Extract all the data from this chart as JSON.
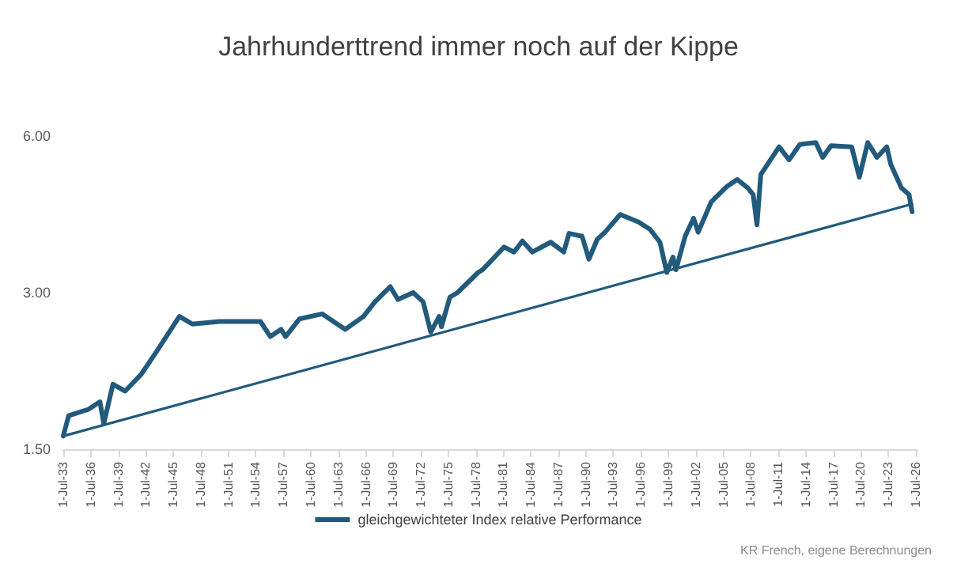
{
  "chart_data": {
    "type": "line",
    "title": "Jahrhunderttrend immer noch auf der Kippe",
    "annotations": [
      "KR French, eigene Berechnungen"
    ],
    "log": "y",
    "grid": false,
    "legend": "bottom",
    "marker": "none",
    "line_style": "solid",
    "ylim": [
      1.5,
      6
    ],
    "yticks": [
      {
        "value": 1.5,
        "label": "1.50"
      },
      {
        "value": 3,
        "label": "3.00"
      },
      {
        "value": 6,
        "label": "6.00"
      }
    ],
    "xlim": [
      "1933-07-01",
      "2026-07-01"
    ],
    "xticks": [
      {
        "value": "1933-07-01",
        "label": "1-Jul-33"
      },
      {
        "value": "1936-07-01",
        "label": "1-Jul-36"
      },
      {
        "value": "1939-07-01",
        "label": "1-Jul-39"
      },
      {
        "value": "1942-07-01",
        "label": "1-Jul-42"
      },
      {
        "value": "1945-07-01",
        "label": "1-Jul-45"
      },
      {
        "value": "1948-07-01",
        "label": "1-Jul-48"
      },
      {
        "value": "1951-07-01",
        "label": "1-Jul-51"
      },
      {
        "value": "1954-07-01",
        "label": "1-Jul-54"
      },
      {
        "value": "1957-07-01",
        "label": "1-Jul-57"
      },
      {
        "value": "1960-07-01",
        "label": "1-Jul-60"
      },
      {
        "value": "1963-07-01",
        "label": "1-Jul-63"
      },
      {
        "value": "1966-07-01",
        "label": "1-Jul-66"
      },
      {
        "value": "1969-07-01",
        "label": "1-Jul-69"
      },
      {
        "value": "1972-07-01",
        "label": "1-Jul-72"
      },
      {
        "value": "1975-07-01",
        "label": "1-Jul-75"
      },
      {
        "value": "1978-07-01",
        "label": "1-Jul-78"
      },
      {
        "value": "1981-07-01",
        "label": "1-Jul-81"
      },
      {
        "value": "1984-07-01",
        "label": "1-Jul-84"
      },
      {
        "value": "1987-07-01",
        "label": "1-Jul-87"
      },
      {
        "value": "1990-07-01",
        "label": "1-Jul-90"
      },
      {
        "value": "1993-07-01",
        "label": "1-Jul-93"
      },
      {
        "value": "1996-07-01",
        "label": "1-Jul-96"
      },
      {
        "value": "1999-07-01",
        "label": "1-Jul-99"
      },
      {
        "value": "2002-07-01",
        "label": "1-Jul-02"
      },
      {
        "value": "2005-07-01",
        "label": "1-Jul-05"
      },
      {
        "value": "2008-07-01",
        "label": "1-Jul-08"
      },
      {
        "value": "2011-07-01",
        "label": "1-Jul-11"
      },
      {
        "value": "2014-07-01",
        "label": "1-Jul-14"
      },
      {
        "value": "2017-07-01",
        "label": "1-Jul-17"
      },
      {
        "value": "2020-07-01",
        "label": "1-Jul-20"
      },
      {
        "value": "2023-07-01",
        "label": "1-Jul-23"
      },
      {
        "value": "2026-07-01",
        "label": "1-Jul-26"
      }
    ],
    "series": [
      {
        "name": "gleichgewichteter Index relative Performance",
        "color": "#215a7c",
        "x": [
          "1933-07",
          "1934-02",
          "1936-04",
          "1937-07",
          "1937-12",
          "1938-12",
          "1940-04",
          "1942-01",
          "1943-09",
          "1946-03",
          "1947-08",
          "1950-07",
          "1955-01",
          "1956-02",
          "1957-04",
          "1957-10",
          "1959-04",
          "1961-10",
          "1964-04",
          "1966-04",
          "1967-07",
          "1969-03",
          "1970-01",
          "1971-09",
          "1972-10",
          "1973-08",
          "1974-07",
          "1974-10",
          "1975-09",
          "1976-07",
          "1978-10",
          "1979-04",
          "1981-08",
          "1982-09",
          "1983-08",
          "1984-09",
          "1986-09",
          "1988-02",
          "1988-09",
          "1990-02",
          "1990-11",
          "1991-10",
          "1992-08",
          "1994-04",
          "1996-04",
          "1997-07",
          "1998-08",
          "1999-05",
          "2000-01",
          "2000-05",
          "2001-05",
          "2002-04",
          "2002-10",
          "2004-03",
          "2005-11",
          "2007-01",
          "2008-03",
          "2008-10",
          "2009-03",
          "2009-08",
          "2011-08",
          "2012-09",
          "2013-11",
          "2015-08",
          "2016-05",
          "2017-04",
          "2019-07",
          "2020-05",
          "2021-04",
          "2022-04",
          "2023-05",
          "2023-10",
          "2024-12",
          "2025-10",
          "2026-02"
        ],
        "values": [
          1.59,
          1.74,
          1.79,
          1.85,
          1.68,
          2.0,
          1.94,
          2.09,
          2.31,
          2.7,
          2.61,
          2.64,
          2.64,
          2.47,
          2.55,
          2.47,
          2.67,
          2.73,
          2.55,
          2.7,
          2.88,
          3.08,
          2.91,
          3.0,
          2.88,
          2.52,
          2.7,
          2.58,
          2.94,
          3.0,
          3.28,
          3.32,
          3.67,
          3.59,
          3.77,
          3.59,
          3.75,
          3.59,
          3.9,
          3.85,
          3.48,
          3.8,
          3.92,
          4.24,
          4.1,
          3.97,
          3.75,
          3.28,
          3.51,
          3.32,
          3.85,
          4.17,
          3.92,
          4.48,
          4.79,
          4.95,
          4.77,
          4.63,
          4.05,
          5.06,
          5.72,
          5.4,
          5.78,
          5.83,
          5.46,
          5.75,
          5.72,
          5.0,
          5.83,
          5.46,
          5.72,
          5.3,
          4.77,
          4.63,
          4.29
        ]
      },
      {
        "color": "#215a7c",
        "x": [
          "1933-07",
          "2026-02"
        ],
        "values": [
          1.59,
          4.44
        ]
      }
    ]
  }
}
